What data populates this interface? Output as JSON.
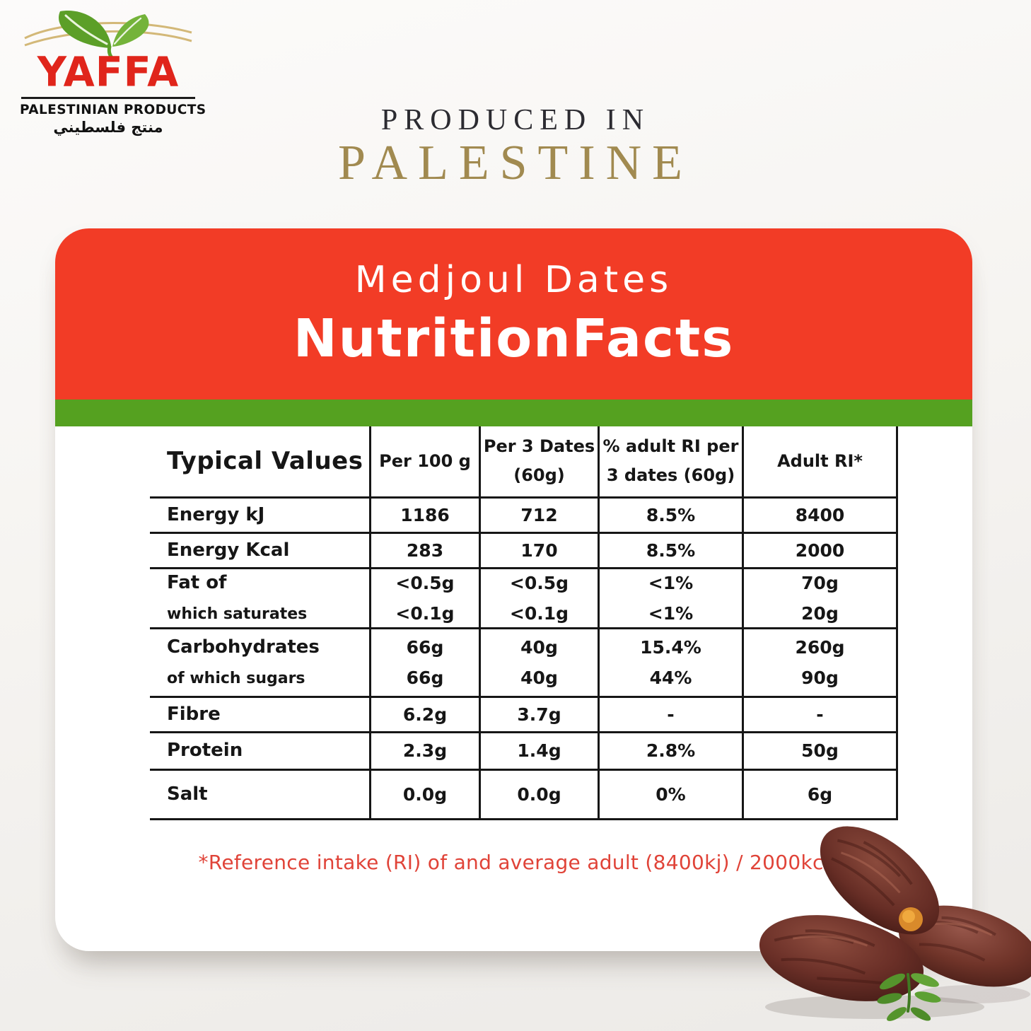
{
  "logo": {
    "brand": "YAFFA",
    "brand_color": "#e0251b",
    "subtitle": "PALESTINIAN PRODUCTS",
    "subtitle_arabic": "منتج فلسطيني",
    "leaf_color": "#5c9f28",
    "arc_color": "#d3b878"
  },
  "produced_in": {
    "line1": "PRODUCED IN",
    "line2": "PALESTINE",
    "line2_color": "#a18a50"
  },
  "card": {
    "header_bg": "#f23c26",
    "stripe_color": "#55a120",
    "product": "Medjoul Dates",
    "title": "NutritionFacts"
  },
  "table": {
    "headers": [
      [
        "Typical Values"
      ],
      [
        "Per 100 g"
      ],
      [
        "Per 3 Dates",
        "(60g)"
      ],
      [
        "% adult RI per",
        "3 dates (60g)"
      ],
      [
        "Adult RI*"
      ]
    ],
    "rows": [
      {
        "label": [
          "Energy kJ"
        ],
        "cells": [
          [
            "1186"
          ],
          [
            "712"
          ],
          [
            "8.5%"
          ],
          [
            "8400"
          ]
        ]
      },
      {
        "label": [
          "Energy Kcal"
        ],
        "cells": [
          [
            "283"
          ],
          [
            "170"
          ],
          [
            "8.5%"
          ],
          [
            "2000"
          ]
        ]
      },
      {
        "label": [
          "Fat of",
          "which saturates"
        ],
        "cells": [
          [
            "<0.5g",
            "<0.1g"
          ],
          [
            "<0.5g",
            "<0.1g"
          ],
          [
            "<1%",
            "<1%"
          ],
          [
            "70g",
            "20g"
          ]
        ]
      },
      {
        "label": [
          "Carbohydrates",
          "of which sugars"
        ],
        "cells": [
          [
            "66g",
            "66g"
          ],
          [
            "40g",
            "40g"
          ],
          [
            "15.4%",
            "44%"
          ],
          [
            "260g",
            "90g"
          ]
        ]
      },
      {
        "label": [
          "Fibre"
        ],
        "cells": [
          [
            "6.2g"
          ],
          [
            "3.7g"
          ],
          [
            "-"
          ],
          [
            "-"
          ]
        ]
      },
      {
        "label": [
          "Protein"
        ],
        "cells": [
          [
            "2.3g"
          ],
          [
            "1.4g"
          ],
          [
            "2.8%"
          ],
          [
            "50g"
          ]
        ]
      },
      {
        "label": [
          "Salt"
        ],
        "cells": [
          [
            "0.0g"
          ],
          [
            "0.0g"
          ],
          [
            "0%"
          ],
          [
            "6g"
          ]
        ]
      }
    ]
  },
  "footnote": {
    "text": "*Reference intake (RI) of and average adult (8400kj) / 2000kcal)",
    "color": "#e04338"
  }
}
